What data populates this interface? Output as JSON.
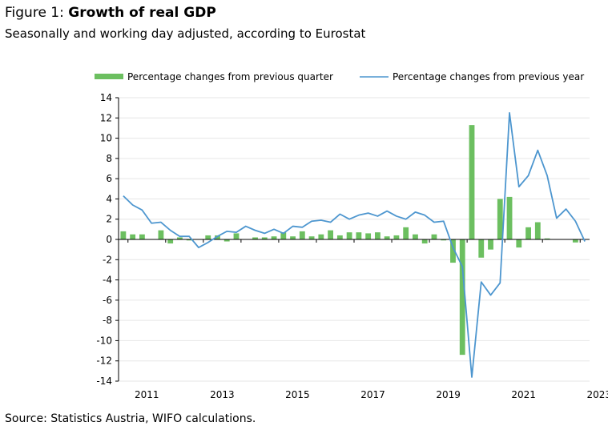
{
  "header": {
    "figure_label": "Figure 1: ",
    "figure_title": "Growth of real GDP",
    "subtitle": "Seasonally and working day adjusted, according to Eurostat"
  },
  "footer": {
    "source": "Source: Statistics Austria, WIFO calculations."
  },
  "colors": {
    "bars": "#6cbf60",
    "line": "#4d96cf",
    "grid": "#e6e6e6",
    "axis": "#000000"
  },
  "chart_data": {
    "type": "bar",
    "legend": {
      "position": "top",
      "bar_label": "Percentage changes from previous quarter",
      "line_label": "Percentage changes from previous year"
    },
    "ylim": [
      -14,
      14
    ],
    "y_ticks": [
      14,
      12,
      10,
      8,
      6,
      4,
      2,
      0,
      -2,
      -4,
      -6,
      -8,
      -10,
      -12,
      -14
    ],
    "x_tick_labels": [
      "2011",
      "2013",
      "2015",
      "2017",
      "2019",
      "2021",
      "2023"
    ],
    "grid": true,
    "periods": [
      "2010 Q4",
      "2011 Q1",
      "2011 Q2",
      "2011 Q3",
      "2011 Q4",
      "2012 Q1",
      "2012 Q2",
      "2012 Q3",
      "2012 Q4",
      "2013 Q1",
      "2013 Q2",
      "2013 Q3",
      "2013 Q4",
      "2014 Q1",
      "2014 Q2",
      "2014 Q3",
      "2014 Q4",
      "2015 Q1",
      "2015 Q2",
      "2015 Q3",
      "2015 Q4",
      "2016 Q1",
      "2016 Q2",
      "2016 Q3",
      "2016 Q4",
      "2017 Q1",
      "2017 Q2",
      "2017 Q3",
      "2017 Q4",
      "2018 Q1",
      "2018 Q2",
      "2018 Q3",
      "2018 Q4",
      "2019 Q1",
      "2019 Q2",
      "2019 Q3",
      "2019 Q4",
      "2020 Q1",
      "2020 Q2",
      "2020 Q3",
      "2020 Q4",
      "2021 Q1",
      "2021 Q2",
      "2021 Q3",
      "2021 Q4",
      "2022 Q1",
      "2022 Q2",
      "2022 Q3",
      "2022 Q4",
      "2023 Q1"
    ],
    "series": [
      {
        "name": "Percentage changes from previous quarter",
        "type": "bar",
        "values": [
          0.8,
          0.5,
          0.5,
          0.0,
          0.9,
          -0.4,
          0.2,
          -0.1,
          0.0,
          0.4,
          0.4,
          -0.2,
          0.6,
          0.0,
          0.2,
          0.2,
          0.3,
          0.7,
          0.3,
          0.8,
          0.3,
          0.5,
          0.9,
          0.4,
          0.7,
          0.7,
          0.6,
          0.7,
          0.3,
          0.4,
          1.2,
          0.5,
          -0.4,
          0.5,
          -0.1,
          -2.3,
          -11.4,
          11.3,
          -1.8,
          -1.0,
          4.0,
          4.2,
          -0.8,
          1.2,
          1.7,
          0.1,
          0.0,
          0.0,
          -0.3,
          0.0
        ]
      },
      {
        "name": "Percentage changes from previous year",
        "type": "line",
        "values": [
          4.3,
          3.4,
          2.9,
          1.6,
          1.7,
          0.9,
          0.3,
          0.3,
          -0.8,
          -0.3,
          0.3,
          0.8,
          0.7,
          1.3,
          0.9,
          0.6,
          1.0,
          0.6,
          1.3,
          1.2,
          1.8,
          1.9,
          1.7,
          2.5,
          2.0,
          2.4,
          2.6,
          2.3,
          2.8,
          2.3,
          2.0,
          2.7,
          2.4,
          1.7,
          1.8,
          -0.8,
          -2.7,
          -13.6,
          -4.2,
          -5.5,
          -4.3,
          12.5,
          5.2,
          6.3,
          8.8,
          6.3,
          2.1,
          3.0,
          1.8,
          -0.2
        ]
      }
    ]
  }
}
